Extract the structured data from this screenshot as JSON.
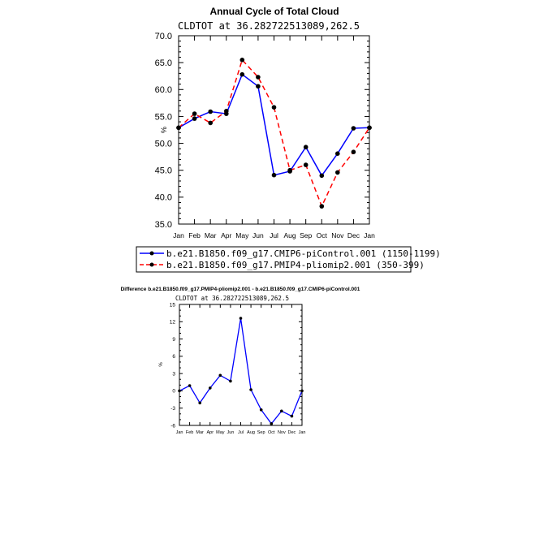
{
  "chart_data": [
    {
      "type": "line",
      "title": "Annual Cycle of Total Cloud",
      "subtitle": "CLDTOT at 36.282722513089,262.5",
      "xlabel": "",
      "ylabel": "%",
      "categories": [
        "Jan",
        "Feb",
        "Mar",
        "Apr",
        "May",
        "Jun",
        "Jul",
        "Aug",
        "Sep",
        "Oct",
        "Nov",
        "Dec",
        "Jan"
      ],
      "ylim": [
        35.0,
        70.0
      ],
      "yticks": [
        "35.0",
        "40.0",
        "45.0",
        "50.0",
        "55.0",
        "60.0",
        "65.0",
        "70.0"
      ],
      "legend_position": "bottom",
      "series": [
        {
          "name": "b.e21.B1850.f09_g17.CMIP6-piControl.001 (1150-1199)",
          "color": "#0000ff",
          "style": "solid",
          "values": [
            52.9,
            54.6,
            55.9,
            55.5,
            62.8,
            60.6,
            44.1,
            44.8,
            49.3,
            44.0,
            48.1,
            52.8,
            52.9
          ]
        },
        {
          "name": "b.e21.B1850.f09_g17.PMIP4-pliomip2.001 (350-399)",
          "color": "#ff0000",
          "style": "dashed",
          "values": [
            52.9,
            55.5,
            53.8,
            56.0,
            65.5,
            62.3,
            56.7,
            45.0,
            46.0,
            38.3,
            44.6,
            48.4,
            52.9
          ]
        }
      ]
    },
    {
      "type": "line",
      "title": "Difference b.e21.B1850.f09_g17.PMIP4-pliomip2.001 - b.e21.B1850.f09_g17.CMIP6-piControl.001",
      "subtitle": "CLDTOT at 36.282722513089,262.5",
      "xlabel": "",
      "ylabel": "%",
      "categories": [
        "Jan",
        "Feb",
        "Mar",
        "Apr",
        "May",
        "Jun",
        "Jul",
        "Aug",
        "Sep",
        "Oct",
        "Nov",
        "Dec",
        "Jan"
      ],
      "ylim": [
        -6,
        15
      ],
      "yticks": [
        "-6",
        "-3",
        "0",
        "3",
        "6",
        "9",
        "12",
        "15"
      ],
      "series": [
        {
          "color": "#0000ff",
          "style": "solid",
          "values": [
            0.0,
            0.9,
            -2.1,
            0.5,
            2.7,
            1.7,
            12.6,
            0.2,
            -3.3,
            -5.7,
            -3.5,
            -4.4,
            0.0
          ]
        }
      ]
    }
  ]
}
